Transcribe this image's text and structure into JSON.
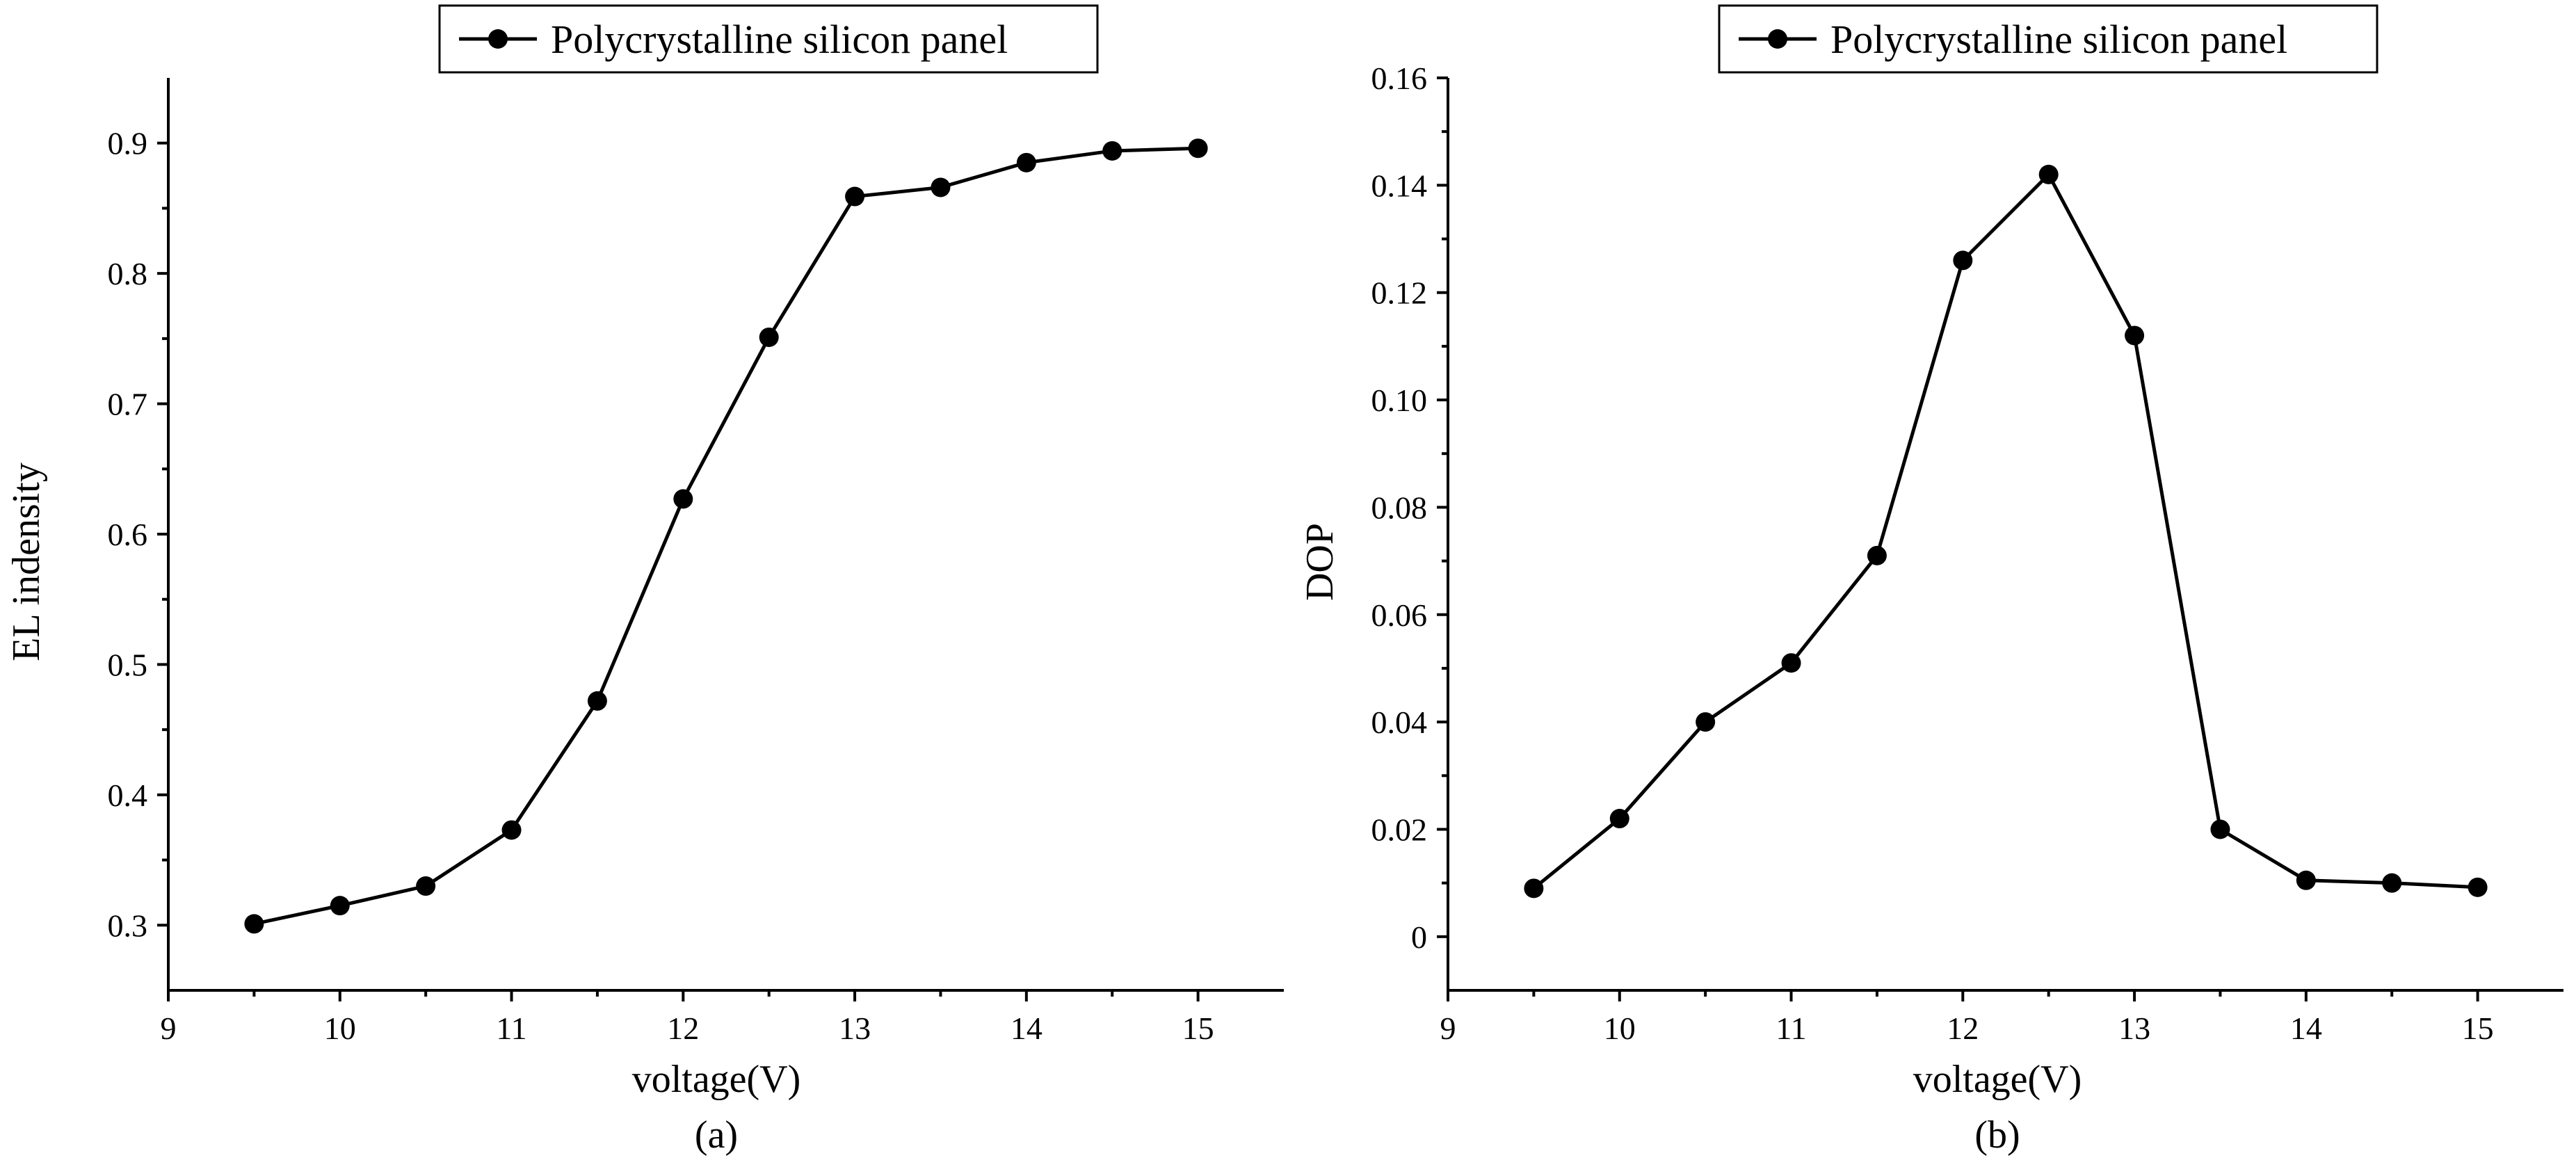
{
  "chart_data": [
    {
      "type": "line",
      "panel_label": "(a)",
      "title": "",
      "xlabel": "voltage(V)",
      "ylabel": "EL indensity",
      "xlim": [
        9,
        15.5
      ],
      "ylim": [
        0.25,
        0.95
      ],
      "x_ticks": [
        9,
        10,
        11,
        12,
        13,
        14,
        15
      ],
      "x_tick_labels": [
        "9",
        "10",
        "11",
        "12",
        "13",
        "14",
        "15"
      ],
      "y_ticks": [
        0.3,
        0.4,
        0.5,
        0.6,
        0.7,
        0.8,
        0.9
      ],
      "y_tick_labels": [
        "0.3",
        "0.4",
        "0.5",
        "0.6",
        "0.7",
        "0.8",
        "0.9"
      ],
      "legend_position": "top-center",
      "grid": false,
      "series": [
        {
          "name": "Polycrystalline silicon panel",
          "x": [
            9.5,
            10,
            10.5,
            11,
            11.5,
            12,
            12.5,
            13,
            13.5,
            14,
            14.5,
            15
          ],
          "values": [
            0.301,
            0.315,
            0.33,
            0.373,
            0.472,
            0.627,
            0.751,
            0.859,
            0.866,
            0.885,
            0.894,
            0.896
          ]
        }
      ]
    },
    {
      "type": "line",
      "panel_label": "(b)",
      "title": "",
      "xlabel": "voltage(V)",
      "ylabel": "DOP",
      "xlim": [
        9,
        15.5
      ],
      "ylim": [
        -0.01,
        0.16
      ],
      "x_ticks": [
        9,
        10,
        11,
        12,
        13,
        14,
        15
      ],
      "x_tick_labels": [
        "9",
        "10",
        "11",
        "12",
        "13",
        "14",
        "15"
      ],
      "y_ticks": [
        0,
        0.02,
        0.04,
        0.06,
        0.08,
        0.1,
        0.12,
        0.14,
        0.16
      ],
      "y_tick_labels": [
        "0",
        "0.02",
        "0.04",
        "0.06",
        "0.08",
        "0.10",
        "0.12",
        "0.14",
        "0.16"
      ],
      "legend_position": "top-center",
      "grid": false,
      "series": [
        {
          "name": "Polycrystalline silicon panel",
          "x": [
            9.5,
            10,
            10.5,
            11,
            11.5,
            12,
            12.5,
            13,
            13.5,
            14,
            14.5,
            15
          ],
          "values": [
            0.009,
            0.022,
            0.04,
            0.051,
            0.071,
            0.126,
            0.142,
            0.112,
            0.02,
            0.0105,
            0.01,
            0.0092
          ]
        }
      ]
    }
  ]
}
